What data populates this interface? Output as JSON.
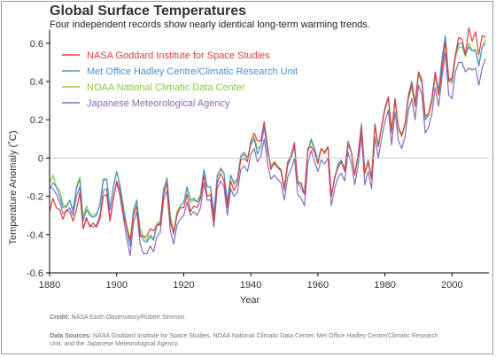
{
  "header": {
    "title": "Global Surface Temperatures",
    "subtitle": "Four independent records show nearly identical long-term warming trends."
  },
  "footer": {
    "credit_label": "Credit:",
    "credit_text": "NASA Earth Observatory/Robert Simmon",
    "sources_label": "Data Sources:",
    "sources_text": "NASA Goddard Institute for Space Studies, NOAA National Climatic Data Center, Met Office Hadley Centre/Climatic Research Unit, and the Japanese Meteorological Agency."
  },
  "colors": {
    "nasa": "#d94040",
    "met": "#4a8fd0",
    "noaa": "#8cc63f",
    "jma": "#8a6ab8",
    "axis": "#000000",
    "grid": "#cccccc"
  },
  "chart_data": {
    "type": "line",
    "title": "Global Surface Temperatures",
    "subtitle": "Four independent records show nearly identical long-term warming trends.",
    "xlabel": "Year",
    "ylabel": "Temperature Anomaly (˚C)",
    "xlim": [
      1880,
      2011
    ],
    "ylim": [
      -0.6,
      0.65
    ],
    "xticks": [
      1880,
      1900,
      1920,
      1940,
      1960,
      1980,
      2000
    ],
    "xtick_labels": [
      "1880",
      "1900",
      "1920",
      "1940",
      "1960",
      "1980",
      "2000"
    ],
    "yticks": [
      -0.6,
      -0.4,
      -0.2,
      0,
      0.2,
      0.4,
      0.6
    ],
    "ytick_labels": [
      "-0.6",
      "-0.4",
      "-0.2",
      "0",
      "0.2",
      "0.4",
      "0.6"
    ],
    "grid": "horizontal line at 0 only",
    "legend_position": "top-left",
    "x": [
      1880,
      1881,
      1882,
      1883,
      1884,
      1885,
      1886,
      1887,
      1888,
      1889,
      1890,
      1891,
      1892,
      1893,
      1894,
      1895,
      1896,
      1897,
      1898,
      1899,
      1900,
      1901,
      1902,
      1903,
      1904,
      1905,
      1906,
      1907,
      1908,
      1909,
      1910,
      1911,
      1912,
      1913,
      1914,
      1915,
      1916,
      1917,
      1918,
      1919,
      1920,
      1921,
      1922,
      1923,
      1924,
      1925,
      1926,
      1927,
      1928,
      1929,
      1930,
      1931,
      1932,
      1933,
      1934,
      1935,
      1936,
      1937,
      1938,
      1939,
      1940,
      1941,
      1942,
      1943,
      1944,
      1945,
      1946,
      1947,
      1948,
      1949,
      1950,
      1951,
      1952,
      1953,
      1954,
      1955,
      1956,
      1957,
      1958,
      1959,
      1960,
      1961,
      1962,
      1963,
      1964,
      1965,
      1966,
      1967,
      1968,
      1969,
      1970,
      1971,
      1972,
      1973,
      1974,
      1975,
      1976,
      1977,
      1978,
      1979,
      1980,
      1981,
      1982,
      1983,
      1984,
      1985,
      1986,
      1987,
      1988,
      1989,
      1990,
      1991,
      1992,
      1993,
      1994,
      1995,
      1996,
      1997,
      1998,
      1999,
      2000,
      2001,
      2002,
      2003,
      2004,
      2005,
      2006,
      2007,
      2008,
      2009,
      2010
    ],
    "series": [
      {
        "name": "NASA Goddard Institute for Space Studies",
        "color": "#d94040",
        "values": [
          -0.28,
          -0.21,
          -0.26,
          -0.27,
          -0.32,
          -0.27,
          -0.28,
          -0.33,
          -0.27,
          -0.18,
          -0.37,
          -0.31,
          -0.36,
          -0.34,
          -0.36,
          -0.32,
          -0.2,
          -0.19,
          -0.33,
          -0.22,
          -0.12,
          -0.17,
          -0.3,
          -0.36,
          -0.43,
          -0.3,
          -0.25,
          -0.41,
          -0.41,
          -0.41,
          -0.37,
          -0.38,
          -0.35,
          -0.35,
          -0.19,
          -0.13,
          -0.34,
          -0.39,
          -0.29,
          -0.26,
          -0.26,
          -0.19,
          -0.28,
          -0.25,
          -0.26,
          -0.21,
          -0.09,
          -0.2,
          -0.19,
          -0.33,
          -0.13,
          -0.08,
          -0.12,
          -0.26,
          -0.12,
          -0.17,
          -0.13,
          -0.01,
          0.0,
          -0.02,
          0.09,
          0.13,
          0.09,
          0.09,
          0.19,
          0.06,
          -0.06,
          -0.02,
          -0.05,
          -0.06,
          -0.16,
          -0.02,
          0.01,
          0.08,
          -0.13,
          -0.13,
          -0.19,
          0.05,
          0.06,
          0.03,
          -0.03,
          0.05,
          0.03,
          0.06,
          -0.2,
          -0.1,
          -0.05,
          -0.02,
          -0.07,
          0.07,
          0.03,
          -0.09,
          0.01,
          0.16,
          -0.08,
          -0.02,
          -0.11,
          0.17,
          0.06,
          0.16,
          0.26,
          0.32,
          0.14,
          0.31,
          0.16,
          0.12,
          0.18,
          0.32,
          0.39,
          0.27,
          0.45,
          0.4,
          0.22,
          0.23,
          0.31,
          0.45,
          0.33,
          0.46,
          0.61,
          0.4,
          0.42,
          0.54,
          0.63,
          0.62,
          0.54,
          0.68,
          0.61,
          0.66,
          0.54,
          0.64,
          0.63
        ]
      },
      {
        "name": "Met Office Hadley Centre/Climatic Research Unit",
        "color": "#4a8fd0",
        "values": [
          -0.16,
          -0.13,
          -0.15,
          -0.2,
          -0.26,
          -0.25,
          -0.22,
          -0.28,
          -0.16,
          -0.11,
          -0.33,
          -0.27,
          -0.3,
          -0.31,
          -0.3,
          -0.24,
          -0.11,
          -0.11,
          -0.27,
          -0.15,
          -0.07,
          -0.15,
          -0.26,
          -0.37,
          -0.46,
          -0.28,
          -0.22,
          -0.39,
          -0.43,
          -0.44,
          -0.41,
          -0.43,
          -0.35,
          -0.34,
          -0.16,
          -0.11,
          -0.32,
          -0.4,
          -0.3,
          -0.25,
          -0.23,
          -0.15,
          -0.22,
          -0.21,
          -0.23,
          -0.2,
          -0.06,
          -0.15,
          -0.15,
          -0.29,
          -0.09,
          -0.06,
          -0.08,
          -0.23,
          -0.09,
          -0.13,
          -0.11,
          0.01,
          0.03,
          0.0,
          0.07,
          0.1,
          0.02,
          0.06,
          0.16,
          0.03,
          -0.05,
          -0.03,
          -0.05,
          -0.07,
          -0.17,
          -0.04,
          0.0,
          0.06,
          -0.13,
          -0.16,
          -0.19,
          0.03,
          0.1,
          0.05,
          -0.01,
          0.05,
          0.03,
          0.06,
          -0.2,
          -0.11,
          -0.03,
          -0.01,
          -0.06,
          0.09,
          0.03,
          -0.09,
          0.02,
          0.18,
          -0.08,
          -0.01,
          -0.1,
          0.18,
          0.06,
          0.17,
          0.26,
          0.32,
          0.14,
          0.31,
          0.16,
          0.12,
          0.18,
          0.33,
          0.4,
          0.29,
          0.45,
          0.41,
          0.2,
          0.23,
          0.31,
          0.45,
          0.35,
          0.52,
          0.64,
          0.42,
          0.4,
          0.54,
          0.6,
          0.6,
          0.54,
          0.58,
          0.56,
          0.56,
          0.48,
          0.58,
          0.6
        ]
      },
      {
        "name": "NOAA National Climatic Data Center",
        "color": "#8cc63f",
        "values": [
          -0.13,
          -0.09,
          -0.15,
          -0.17,
          -0.24,
          -0.26,
          -0.22,
          -0.27,
          -0.15,
          -0.1,
          -0.31,
          -0.25,
          -0.29,
          -0.3,
          -0.29,
          -0.25,
          -0.12,
          -0.11,
          -0.26,
          -0.16,
          -0.07,
          -0.14,
          -0.25,
          -0.35,
          -0.43,
          -0.27,
          -0.22,
          -0.37,
          -0.41,
          -0.43,
          -0.4,
          -0.42,
          -0.34,
          -0.33,
          -0.17,
          -0.1,
          -0.3,
          -0.39,
          -0.28,
          -0.25,
          -0.23,
          -0.16,
          -0.23,
          -0.22,
          -0.23,
          -0.19,
          -0.06,
          -0.15,
          -0.15,
          -0.3,
          -0.1,
          -0.05,
          -0.08,
          -0.23,
          -0.09,
          -0.14,
          -0.11,
          0.0,
          0.02,
          -0.01,
          0.07,
          0.11,
          0.05,
          0.06,
          0.17,
          0.04,
          -0.04,
          -0.02,
          -0.04,
          -0.06,
          -0.15,
          -0.03,
          0.01,
          0.07,
          -0.12,
          -0.14,
          -0.18,
          0.04,
          0.09,
          0.04,
          -0.02,
          0.05,
          0.02,
          0.06,
          -0.2,
          -0.1,
          -0.04,
          -0.02,
          -0.07,
          0.08,
          0.03,
          -0.08,
          0.02,
          0.17,
          -0.08,
          -0.02,
          -0.11,
          0.17,
          0.06,
          0.16,
          0.25,
          0.31,
          0.13,
          0.3,
          0.15,
          0.11,
          0.17,
          0.31,
          0.37,
          0.27,
          0.44,
          0.39,
          0.2,
          0.22,
          0.29,
          0.43,
          0.33,
          0.49,
          0.62,
          0.4,
          0.39,
          0.52,
          0.58,
          0.58,
          0.53,
          0.6,
          0.56,
          0.57,
          0.49,
          0.58,
          0.62
        ]
      },
      {
        "name": "Japanese Meteorological Agency",
        "color": "#8a6ab8",
        "values": [
          -0.15,
          -0.16,
          -0.19,
          -0.23,
          -0.29,
          -0.28,
          -0.26,
          -0.3,
          -0.2,
          -0.15,
          -0.37,
          -0.32,
          -0.35,
          -0.36,
          -0.35,
          -0.3,
          -0.17,
          -0.16,
          -0.32,
          -0.21,
          -0.13,
          -0.2,
          -0.31,
          -0.42,
          -0.51,
          -0.34,
          -0.28,
          -0.45,
          -0.5,
          -0.5,
          -0.46,
          -0.49,
          -0.41,
          -0.39,
          -0.22,
          -0.17,
          -0.38,
          -0.45,
          -0.35,
          -0.32,
          -0.3,
          -0.23,
          -0.3,
          -0.28,
          -0.3,
          -0.26,
          -0.13,
          -0.22,
          -0.22,
          -0.36,
          -0.16,
          -0.12,
          -0.15,
          -0.3,
          -0.16,
          -0.2,
          -0.18,
          -0.06,
          -0.04,
          -0.07,
          0.02,
          0.05,
          -0.02,
          0.01,
          0.1,
          -0.03,
          -0.11,
          -0.09,
          -0.11,
          -0.13,
          -0.22,
          -0.1,
          -0.06,
          0.0,
          -0.19,
          -0.21,
          -0.25,
          -0.03,
          0.04,
          -0.02,
          -0.07,
          -0.01,
          -0.03,
          0.0,
          -0.25,
          -0.16,
          -0.1,
          -0.08,
          -0.12,
          0.03,
          -0.03,
          -0.14,
          -0.04,
          0.12,
          -0.14,
          -0.07,
          -0.16,
          0.11,
          0.0,
          0.1,
          0.19,
          0.25,
          0.07,
          0.24,
          0.09,
          0.05,
          0.11,
          0.25,
          0.31,
          0.2,
          0.38,
          0.33,
          0.13,
          0.16,
          0.23,
          0.37,
          0.27,
          0.42,
          0.55,
          0.33,
          0.31,
          0.45,
          0.5,
          0.5,
          0.45,
          0.47,
          0.46,
          0.47,
          0.38,
          0.47,
          0.52
        ]
      }
    ]
  }
}
